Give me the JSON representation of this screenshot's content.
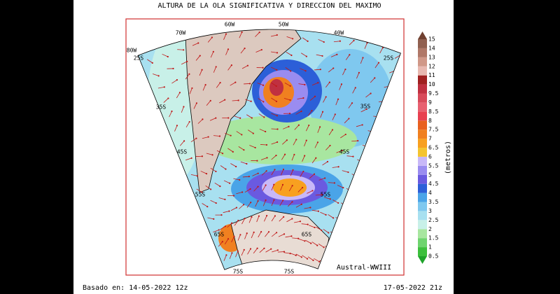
{
  "title": "ALTURA DE LA OLA SIGNIFICATIVA Y DIRECCION DEL MAXIMO",
  "map": {
    "labels": [
      "60W",
      "50W",
      "70W",
      "40W",
      "80W",
      "25S",
      "25S",
      "35S",
      "35S",
      "45S",
      "45S",
      "55S",
      "55S",
      "65S",
      "65S",
      "75S",
      "75S"
    ],
    "model": "Austral-WWIII"
  },
  "colorbar": {
    "labels": [
      "0.5",
      "1",
      "1.5",
      "2",
      "2.5",
      "3",
      "3.5",
      "4",
      "4.5",
      "5",
      "5.5",
      "6",
      "6.5",
      "7",
      "7.5",
      "8",
      "8.5",
      "9",
      "9.5",
      "10",
      "11",
      "12",
      "13",
      "14",
      "15"
    ],
    "colors": [
      "#1fa32a",
      "#3cbf3c",
      "#6fd46f",
      "#a8e6a0",
      "#c8f0e8",
      "#a8e0f0",
      "#7fc8ef",
      "#4aa4e8",
      "#2c5fd8",
      "#6a5ae0",
      "#9a8cf0",
      "#c8b8f8",
      "#f4c430",
      "#f8a020",
      "#f08020",
      "#e86020",
      "#e84050",
      "#e86070",
      "#d84a5a",
      "#c03040",
      "#a02020",
      "#e8b8b0",
      "#d09888",
      "#b07868",
      "#906050",
      "#704030"
    ],
    "unit": "(metros)"
  },
  "footer": {
    "left": "Basado en: 14-05-2022 12z",
    "right": "17-05-2022 21z"
  }
}
